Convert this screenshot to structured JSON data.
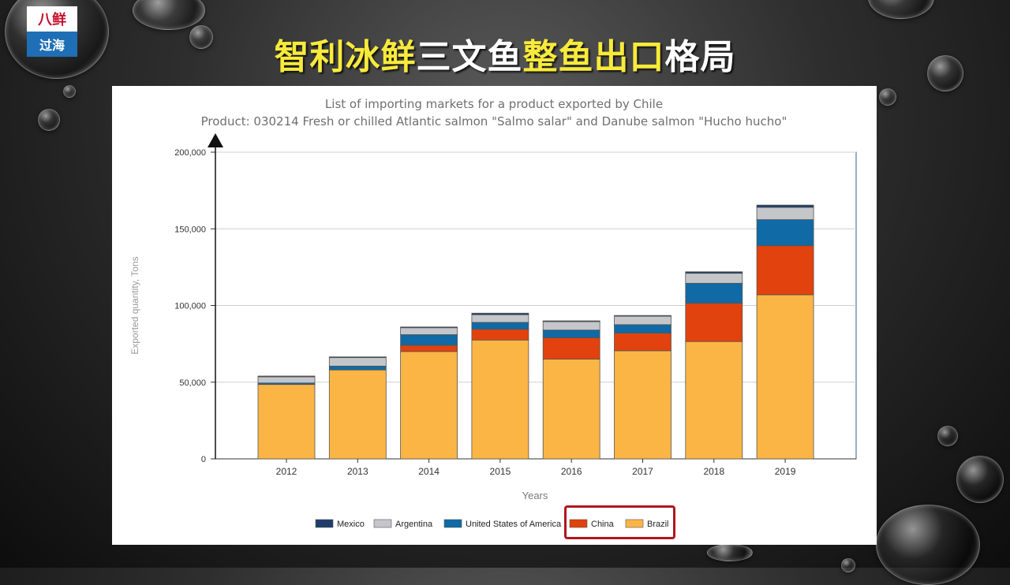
{
  "logo": {
    "line1": "八鲜",
    "line2": "过海"
  },
  "page_title": {
    "segments": [
      {
        "text": "智利冰鲜",
        "color": "yellow"
      },
      {
        "text": "三文鱼",
        "color": "white"
      },
      {
        "text": "整鱼出口",
        "color": "yellow"
      },
      {
        "text": "格局",
        "color": "white"
      }
    ]
  },
  "colors": {
    "title_yellow": "#f7ea3b",
    "Mexico": "#1f3d6b",
    "Argentina": "#c4c6c9",
    "United States of America": "#0f6aa6",
    "China": "#e2420d",
    "Brazil": "#fbb545",
    "highlight_box": "#b0161e"
  },
  "chart_data": {
    "type": "bar",
    "stacked": true,
    "title": "List of importing markets for a product exported by Chile",
    "subtitle": "Product: 030214 Fresh or chilled Atlantic salmon \"Salmo salar\" and Danube salmon \"Hucho hucho\"",
    "xlabel": "Years",
    "ylabel": "Exported quantity, Tons",
    "ylim": [
      0,
      200000
    ],
    "yticks": [
      0,
      50000,
      100000,
      150000,
      200000
    ],
    "ytick_labels": [
      "0",
      "50,000",
      "100,000",
      "150,000",
      "200,000"
    ],
    "grid": true,
    "legend_position": "bottom",
    "categories": [
      "2012",
      "2013",
      "2014",
      "2015",
      "2016",
      "2017",
      "2018",
      "2019"
    ],
    "series": [
      {
        "name": "Brazil",
        "values": [
          48500,
          58000,
          70000,
          77500,
          65000,
          70500,
          76500,
          107000
        ]
      },
      {
        "name": "China",
        "values": [
          0,
          0,
          4000,
          7000,
          14000,
          11500,
          25000,
          32000
        ]
      },
      {
        "name": "United States of America",
        "values": [
          1000,
          2500,
          7000,
          4500,
          5000,
          5500,
          13000,
          17000
        ]
      },
      {
        "name": "Argentina",
        "values": [
          4000,
          5500,
          4500,
          5000,
          5500,
          5500,
          6500,
          8000
        ]
      },
      {
        "name": "Mexico",
        "values": [
          500,
          500,
          500,
          1000,
          500,
          500,
          1000,
          1500
        ]
      }
    ],
    "legend_order": [
      "Mexico",
      "Argentina",
      "United States of America",
      "China",
      "Brazil"
    ],
    "highlighted_legend": [
      "China",
      "Brazil"
    ]
  }
}
